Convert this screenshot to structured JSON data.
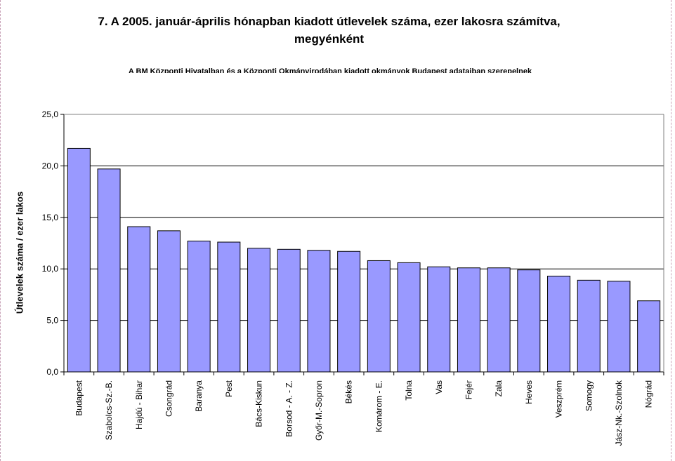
{
  "page": {
    "title_line1": "7. A 2005. január-április hónapban kiadott útlevelek száma, ezer lakosra számítva,",
    "title_line2": "megyénként",
    "subtitle": "A BM Központi Hivatalban és a Központi Okmányirodában kiadott okmányok Budapest adataiban szerepelnek"
  },
  "chart_data": {
    "type": "bar",
    "title": "7. A 2005. január-április hónapban kiadott útlevelek száma, ezer lakosra számítva, megyénként",
    "xlabel": "",
    "ylabel": "Útlevelek száma / ezer lakos",
    "ylim": [
      0,
      25
    ],
    "yticks": [
      "0,0",
      "5,0",
      "10,0",
      "15,0",
      "20,0",
      "25,0"
    ],
    "ytick_values": [
      0,
      5,
      10,
      15,
      20,
      25
    ],
    "grid": true,
    "legend": "none",
    "bar_color": "#9999ff",
    "categories": [
      "Budapest",
      "Szabolcs-Sz.-B.",
      "Hajdú - Bihar",
      "Csongrád",
      "Baranya",
      "Pest",
      "Bács-Kiskun",
      "Borsod - A. - Z.",
      "Győr-M.-Sopron",
      "Békés",
      "Komárom - E.",
      "Tolna",
      "Vas",
      "Fejér",
      "Zala",
      "Heves",
      "Veszprém",
      "Somogy",
      "Jász-Nk.-Szolnok",
      "Nógrád"
    ],
    "values": [
      21.7,
      19.7,
      14.1,
      13.7,
      12.7,
      12.6,
      12.0,
      11.9,
      11.8,
      11.7,
      10.8,
      10.6,
      10.2,
      10.1,
      10.1,
      9.9,
      9.3,
      8.9,
      8.8,
      6.9
    ]
  }
}
